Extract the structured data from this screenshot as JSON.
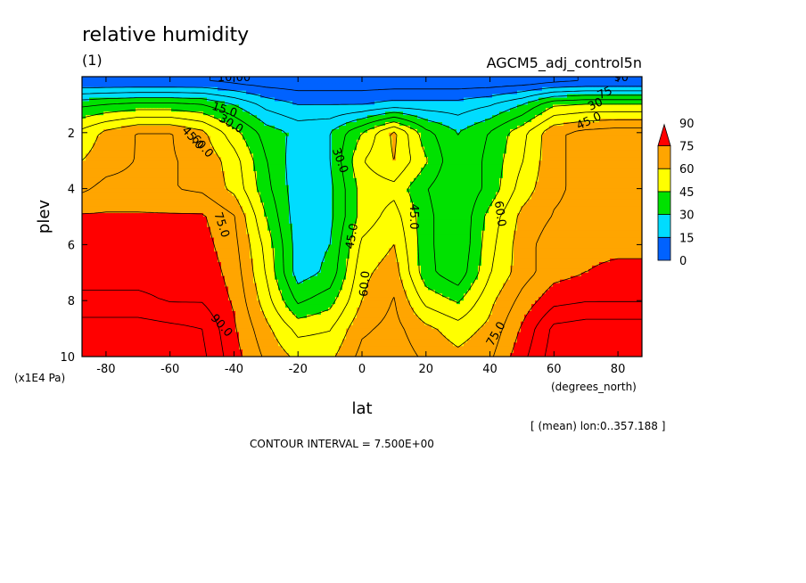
{
  "figure": {
    "title": "relative humidity",
    "panel_label": "(1)",
    "run_name": "AGCM5_adj_control5n",
    "x_unit": "(degrees_north)",
    "y_unit": "(x1E4 Pa)",
    "mean_note": "[ (mean) lon:0..357.188 ]",
    "contour_interval_text": "CONTOUR INTERVAL = 7.500E+00"
  },
  "chart_data": {
    "type": "heatmap",
    "subtype": "filled-contour latitude-pressure cross section",
    "title": "relative humidity",
    "xlabel": "lat",
    "ylabel": "plev",
    "xlim": [
      -87.5,
      87.5
    ],
    "ylim": [
      10,
      0
    ],
    "x_ticks": [
      -80,
      -60,
      -40,
      -20,
      0,
      20,
      40,
      60,
      80
    ],
    "x_tick_labels": [
      "-80",
      "-60",
      "-40",
      "-20",
      "0",
      "20",
      "40",
      "60",
      "80"
    ],
    "y_ticks": [
      2,
      4,
      6,
      8,
      10
    ],
    "y_tick_labels": [
      "2",
      "4",
      "6",
      "8",
      "10"
    ],
    "contour_interval": 7.5,
    "colorbar": {
      "levels": [
        0,
        15,
        30,
        45,
        60,
        75,
        90
      ],
      "level_labels": [
        "0",
        "15",
        "30",
        "45",
        "60",
        "75",
        "90"
      ],
      "colors": [
        "#0062ff",
        "#00dcff",
        "#00e100",
        "#ffff00",
        "#ffa500",
        "#ff0000"
      ],
      "extend": "max"
    },
    "contour_labels": [
      "10.00",
      "15.0",
      "30.0",
      "45.0",
      "60.0",
      "75.0",
      "90.0",
      "30.0",
      "45.0",
      "60.0",
      "45.0",
      "60.0",
      "75.0",
      "45.0",
      "30",
      "75",
      "90"
    ],
    "lat": [
      -87.5,
      -80,
      -70,
      -60,
      -50,
      -40,
      -30,
      -20,
      -10,
      0,
      10,
      20,
      30,
      40,
      50,
      60,
      70,
      80,
      87.5
    ],
    "plev": [
      0.2,
      1,
      2,
      3,
      4,
      5,
      6,
      7,
      8,
      9,
      10
    ],
    "values": [
      [
        8,
        8,
        8,
        8,
        8,
        6,
        4,
        3,
        3,
        3,
        3,
        3,
        3,
        3,
        4,
        6,
        8,
        8,
        8
      ],
      [
        36,
        38,
        40,
        40,
        38,
        30,
        20,
        15,
        15,
        15,
        18,
        18,
        18,
        22,
        30,
        44,
        46,
        46,
        46
      ],
      [
        55,
        62,
        68,
        68,
        62,
        48,
        34,
        28,
        30,
        45,
        62,
        40,
        30,
        38,
        50,
        66,
        70,
        72,
        72
      ],
      [
        60,
        64,
        68,
        68,
        66,
        56,
        38,
        25,
        30,
        52,
        60,
        46,
        30,
        40,
        52,
        66,
        70,
        72,
        72
      ],
      [
        66,
        70,
        70,
        68,
        66,
        58,
        40,
        25,
        28,
        48,
        50,
        38,
        30,
        40,
        56,
        66,
        70,
        70,
        70
      ],
      [
        76,
        76,
        76,
        76,
        76,
        68,
        45,
        25,
        28,
        48,
        56,
        40,
        30,
        48,
        62,
        68,
        70,
        70,
        70
      ],
      [
        78,
        78,
        78,
        78,
        78,
        70,
        50,
        26,
        30,
        54,
        60,
        40,
        30,
        50,
        64,
        72,
        74,
        74,
        74
      ],
      [
        80,
        80,
        80,
        80,
        80,
        72,
        52,
        26,
        32,
        58,
        64,
        40,
        32,
        52,
        64,
        72,
        75,
        76,
        76
      ],
      [
        84,
        84,
        84,
        82,
        82,
        74,
        56,
        36,
        42,
        60,
        68,
        50,
        44,
        58,
        70,
        80,
        82,
        82,
        82
      ],
      [
        94,
        94,
        94,
        92,
        90,
        76,
        62,
        50,
        52,
        66,
        70,
        62,
        56,
        62,
        76,
        92,
        94,
        94,
        94
      ],
      [
        96,
        96,
        96,
        94,
        92,
        78,
        66,
        58,
        58,
        70,
        72,
        66,
        62,
        66,
        80,
        94,
        96,
        96,
        96
      ]
    ]
  }
}
